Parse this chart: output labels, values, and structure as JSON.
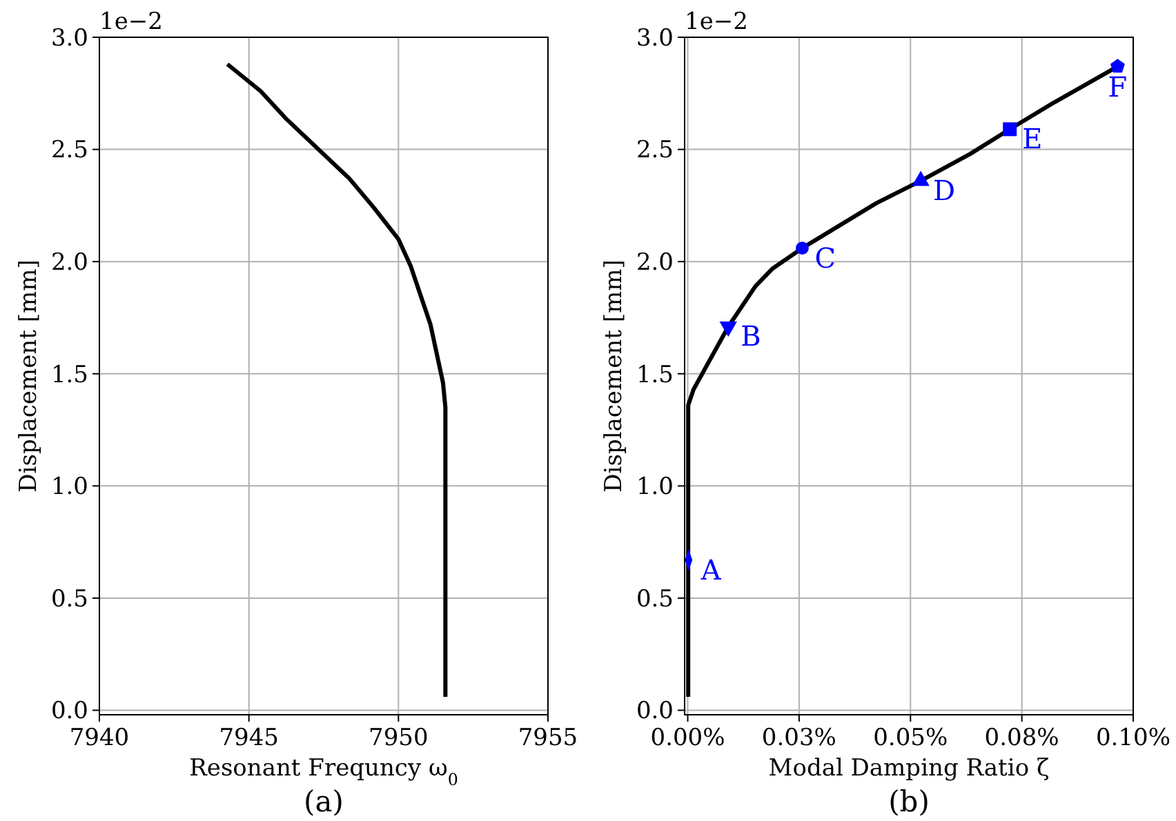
{
  "chart_data": [
    {
      "type": "line",
      "xlabel": "Resonant Frequncy ω$_{0}$",
      "ylabel": "Displacement [mm]",
      "xlim": [
        7940,
        7955
      ],
      "xticks": [
        7940,
        7945,
        7950,
        7955
      ],
      "ylim": [
        -0.02,
        3.0
      ],
      "yticks": [
        {
          "value": 0,
          "label": "0.0"
        },
        0.5,
        {
          "value": 1,
          "label": "1.0"
        },
        1.5,
        {
          "value": 2,
          "label": "2.0"
        },
        2.5,
        {
          "value": 3,
          "label": "3.0"
        }
      ],
      "grid": true,
      "series": [
        {
          "color": "#000000",
          "x": [
            7944.28,
            7945.39,
            7946.22,
            7948.36,
            7949.18,
            7950.0,
            7950.41,
            7951.07,
            7951.49,
            7951.57,
            7951.57
          ],
          "values": [
            2.88,
            2.76,
            2.64,
            2.37,
            2.24,
            2.1,
            1.98,
            1.72,
            1.46,
            1.35,
            0.06
          ]
        }
      ],
      "annotations": [
        "1e−2",
        "(a)"
      ]
    },
    {
      "type": "line",
      "xlabel": "Modal Damping Ratio ζ",
      "ylabel": "Displacement [mm]",
      "xlim": [
        -0.0007,
        0.1
      ],
      "xticks": [
        {
          "value": 0,
          "label": "0.00%"
        },
        {
          "value": 0.025,
          "label": "0.03%"
        },
        {
          "value": 0.05,
          "label": "0.05%"
        },
        {
          "value": 0.075,
          "label": "0.08%"
        },
        {
          "value": 0.1,
          "label": "0.10%"
        }
      ],
      "ylim": [
        -0.02,
        3.0
      ],
      "yticks": [
        {
          "value": 0,
          "label": "0.0"
        },
        0.5,
        {
          "value": 1,
          "label": "1.0"
        },
        1.5,
        {
          "value": 2,
          "label": "2.0"
        },
        2.5,
        {
          "value": 3,
          "label": "3.0"
        }
      ],
      "grid": true,
      "series": [
        {
          "color": "#000000",
          "x": [
            0.0001,
            0.0001,
            0.0013,
            0.0091,
            0.0152,
            0.0191,
            0.0257,
            0.0423,
            0.0523,
            0.0634,
            0.0723,
            0.0823,
            0.0965
          ],
          "values": [
            0.06,
            1.36,
            1.43,
            1.71,
            1.89,
            1.97,
            2.06,
            2.26,
            2.36,
            2.48,
            2.59,
            2.71,
            2.87
          ]
        },
        {
          "type": "scatter",
          "color": "#0000ff",
          "marker": "diamond",
          "x": [
            0.0002
          ],
          "values": [
            0.67
          ]
        },
        {
          "type": "scatter",
          "color": "#0000ff",
          "marker": "triangle-down",
          "x": [
            0.0091
          ],
          "values": [
            1.71
          ]
        },
        {
          "type": "scatter",
          "color": "#0000ff",
          "marker": "circle",
          "x": [
            0.0257
          ],
          "values": [
            2.06
          ]
        },
        {
          "type": "scatter",
          "color": "#0000ff",
          "marker": "triangle",
          "x": [
            0.0523
          ],
          "values": [
            2.36
          ]
        },
        {
          "type": "scatter",
          "color": "#0000ff",
          "marker": "square",
          "x": [
            0.0723
          ],
          "values": [
            2.59
          ]
        },
        {
          "type": "scatter",
          "color": "#0000ff",
          "x": [
            0.0965
          ],
          "values": [
            2.87
          ]
        }
      ],
      "annotations": [
        "1e−2",
        "(b)",
        {
          "text": "A",
          "x": 0.0002,
          "y": 0.67
        },
        {
          "text": "B",
          "x": 0.0091,
          "y": 1.71
        },
        {
          "text": "C",
          "x": 0.0257,
          "y": 2.06
        },
        {
          "text": "D",
          "x": 0.0523,
          "y": 2.36
        },
        {
          "text": "E",
          "x": 0.0723,
          "y": 2.59
        },
        {
          "text": "F",
          "x": 0.0965,
          "y": 2.87
        }
      ]
    }
  ]
}
